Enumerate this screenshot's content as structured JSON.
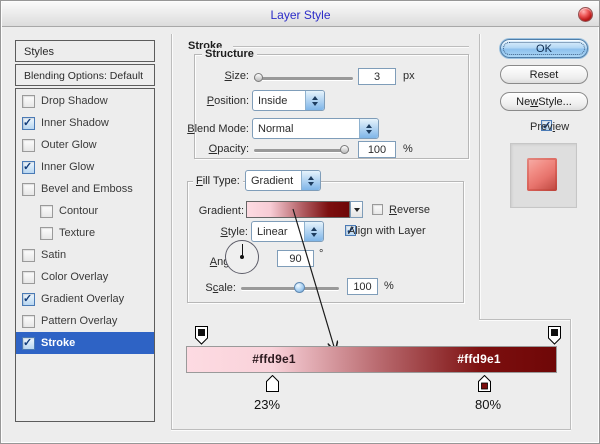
{
  "window": {
    "title": "Layer Style"
  },
  "sidebar": {
    "header": "Styles",
    "blending": "Blending Options: Default",
    "items": [
      {
        "label": "Drop Shadow",
        "checked": false,
        "indent": false,
        "selected": false
      },
      {
        "label": "Inner Shadow",
        "checked": true,
        "indent": false,
        "selected": false
      },
      {
        "label": "Outer Glow",
        "checked": false,
        "indent": false,
        "selected": false
      },
      {
        "label": "Inner Glow",
        "checked": true,
        "indent": false,
        "selected": false
      },
      {
        "label": "Bevel and Emboss",
        "checked": false,
        "indent": false,
        "selected": false
      },
      {
        "label": "Contour",
        "checked": false,
        "indent": true,
        "selected": false
      },
      {
        "label": "Texture",
        "checked": false,
        "indent": true,
        "selected": false
      },
      {
        "label": "Satin",
        "checked": false,
        "indent": false,
        "selected": false
      },
      {
        "label": "Color Overlay",
        "checked": false,
        "indent": false,
        "selected": false
      },
      {
        "label": "Gradient Overlay",
        "checked": true,
        "indent": false,
        "selected": false
      },
      {
        "label": "Pattern Overlay",
        "checked": false,
        "indent": false,
        "selected": false
      },
      {
        "label": "Stroke",
        "checked": true,
        "indent": false,
        "selected": true
      }
    ]
  },
  "main": {
    "title": "Stroke",
    "structure": {
      "legend": "Structure",
      "size": {
        "label": {
          "text": "Size:",
          "u": 0
        },
        "value": "3",
        "unit": "px"
      },
      "position": {
        "label": {
          "text": "Position:",
          "u": 0
        },
        "value": "Inside"
      },
      "blend_mode": {
        "label": {
          "text": "Blend Mode:",
          "u": 0
        },
        "value": "Normal"
      },
      "opacity": {
        "label": {
          "text": "Opacity:",
          "u": 0
        },
        "value": "100",
        "unit": "%"
      }
    },
    "fill": {
      "fill_type": {
        "label": {
          "text": "Fill Type:",
          "u": 0
        },
        "value": "Gradient"
      },
      "gradient_label": {
        "text": "Gradient:",
        "u": -1
      },
      "reverse": {
        "label": {
          "text": "Reverse",
          "u": 0
        },
        "checked": false
      },
      "style": {
        "label": {
          "text": "Style:",
          "u": 0
        },
        "value": "Linear"
      },
      "align": {
        "label": {
          "text": "Align with Layer",
          "u": 3
        },
        "checked": true
      },
      "angle": {
        "label": {
          "text": "Angle:",
          "u": 0
        },
        "value": "90",
        "unit": "°"
      },
      "scale": {
        "label": {
          "text": "Scale:",
          "u": 1
        },
        "value": "100",
        "unit": "%"
      }
    }
  },
  "buttons": {
    "ok": "OK",
    "reset": "Reset",
    "new_style": {
      "text": "New Style...",
      "u": 2
    },
    "preview": {
      "label": {
        "text": "Preview",
        "u": 4
      },
      "checked": true
    }
  },
  "annotation": {
    "left_hex": "#ffd9e1",
    "right_hex": "#ffd9e1",
    "left_pct": "23%",
    "right_pct": "80%",
    "gradient_start_color": "#fddbe2",
    "gradient_end_color": "#6f0707",
    "stop_positions": [
      "23%",
      "80%"
    ]
  },
  "colors": {
    "selected_row": "#2e63c5",
    "title_text": "#2c2cc8",
    "stroke_dark_red": "#7c0f0f",
    "stroke_pink": "#ffd9e1"
  }
}
